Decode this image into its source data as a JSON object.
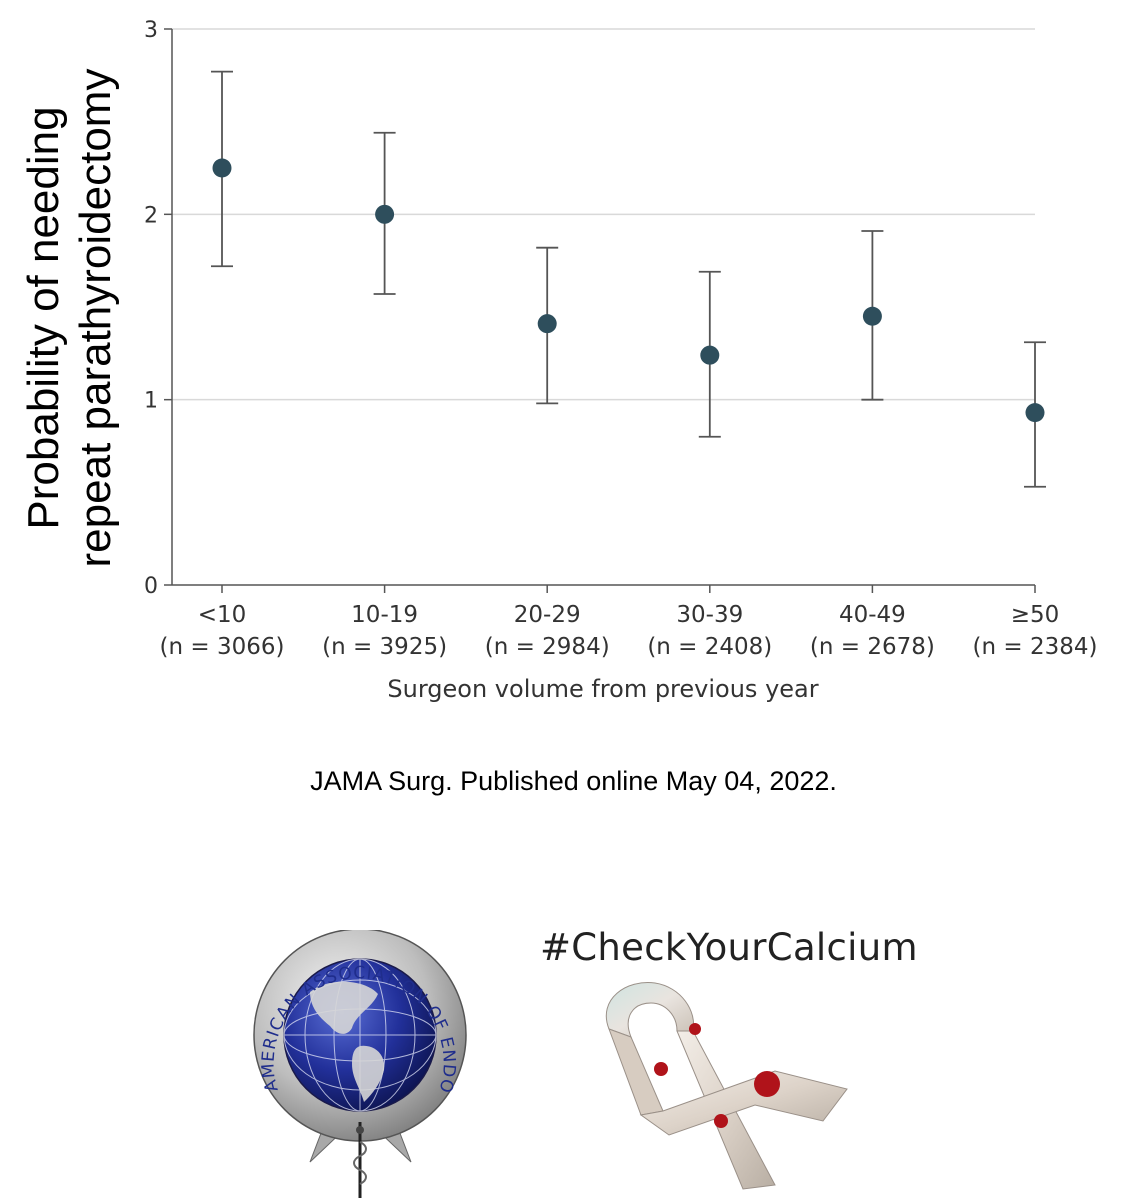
{
  "chart_data": {
    "type": "scatter",
    "subtype": "point-estimate with error bars",
    "ylabel_line1": "Probability of needing",
    "ylabel_line2": "repeat parathyroidectomy",
    "xlabel": "Surgeon volume from previous year",
    "categories": [
      "<10",
      "10-19",
      "20-29",
      "30-39",
      "40-49",
      "≥50"
    ],
    "category_n": [
      "(n = 3066)",
      "(n = 3925)",
      "(n = 2984)",
      "(n = 2408)",
      "(n = 2678)",
      "(n = 2384)"
    ],
    "values": [
      2.25,
      2.0,
      1.41,
      1.24,
      1.45,
      0.93
    ],
    "lower": [
      1.72,
      1.57,
      0.98,
      0.8,
      1.0,
      0.53
    ],
    "upper": [
      2.77,
      2.44,
      1.82,
      1.69,
      1.91,
      1.31
    ],
    "ylim": [
      0,
      3
    ],
    "yticks": [
      "0",
      "1",
      "2",
      "3"
    ],
    "grid": true,
    "point_color": "#2e4e5c",
    "errorbar_color": "#555555",
    "grid_color": "#d9d9d9"
  },
  "citation": "JAMA Surg. Published online May 04, 2022.",
  "hashtag": "#CheckYourCalcium",
  "logo": {
    "text": "AMERICAN ASSOCIATION OF ENDOCRINE SURGEONS",
    "icon": "globe-seal-icon"
  },
  "ribbon_icon": "awareness-ribbon-icon"
}
